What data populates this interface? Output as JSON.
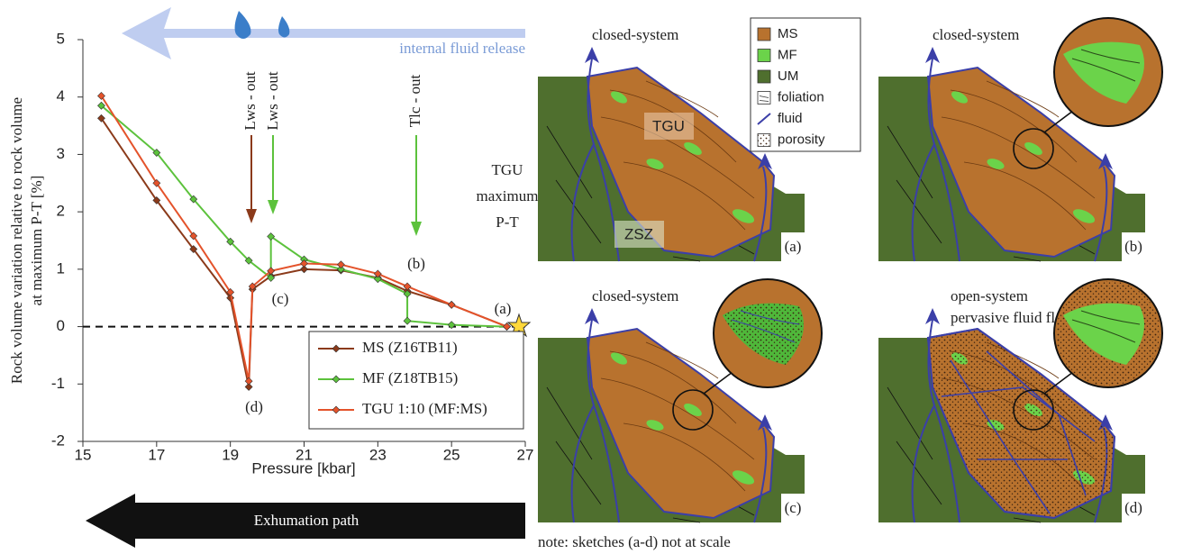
{
  "chart_data": {
    "type": "line",
    "xlabel": "Pressure [kbar]",
    "ylabel": [
      "Rock volume variation relative to rock volume",
      "at maximum P-T [%]"
    ],
    "xlim": [
      15,
      27
    ],
    "xticks": [
      15,
      17,
      19,
      21,
      23,
      25,
      27
    ],
    "ylim": [
      -2,
      5
    ],
    "yticks": [
      -2,
      -1,
      0,
      1,
      2,
      3,
      4,
      5
    ],
    "legend": "lower right",
    "series": [
      {
        "name": "MS (Z16TB11)",
        "color": "#8b3a1a",
        "x": [
          15.5,
          17,
          18,
          19,
          19.5,
          19.6,
          20.1,
          21,
          22,
          23,
          23.8,
          25,
          26.5
        ],
        "values": [
          3.63,
          2.2,
          1.35,
          0.5,
          -1.05,
          0.65,
          0.88,
          1.0,
          0.98,
          0.85,
          0.62,
          0.38,
          0
        ]
      },
      {
        "name": "MF (Z18TB15)",
        "color": "#5cc23c",
        "x": [
          15.5,
          17,
          18,
          19,
          19.5,
          20.1,
          20.1,
          21,
          22,
          23,
          23.8,
          23.8,
          25,
          26.5
        ],
        "values": [
          3.85,
          3.03,
          2.22,
          1.48,
          1.15,
          0.85,
          1.57,
          1.17,
          1.0,
          0.83,
          0.57,
          0.1,
          0.03,
          0
        ]
      },
      {
        "name": "TGU 1:10 (MF:MS)",
        "color": "#e4532b",
        "x": [
          15.5,
          17,
          18,
          19,
          19.5,
          19.6,
          20.1,
          21,
          22,
          23,
          23.8,
          25,
          26.5
        ],
        "values": [
          4.02,
          2.5,
          1.58,
          0.6,
          -0.95,
          0.7,
          0.97,
          1.1,
          1.08,
          0.92,
          0.7,
          0.38,
          0
        ]
      }
    ],
    "annotations": {
      "fluid": "internal fluid release",
      "lws1": "Lws - out",
      "lws2": "Lws - out",
      "tlc": "Tlc - out",
      "a": "(a)",
      "b": "(b)",
      "c": "(c)",
      "d": "(d)",
      "max": [
        "TGU",
        "maximum",
        "P-T"
      ],
      "exhumation": "Exhumation path"
    }
  },
  "sketches": {
    "panels": [
      {
        "title": [
          "closed-system"
        ],
        "label": "(a)"
      },
      {
        "title": [
          "closed-system"
        ],
        "label": "(b)"
      },
      {
        "title": [
          "closed-system"
        ],
        "label": "(c)"
      },
      {
        "title": [
          "open-system",
          "pervasive fluid flow"
        ],
        "label": "(d)"
      }
    ],
    "units": [
      "TGU",
      "ZSZ"
    ],
    "legend": [
      "MS",
      "MF",
      "UM",
      "foliation",
      "fluid",
      "porosity"
    ],
    "note": "note: sketches (a-d) not at scale"
  }
}
